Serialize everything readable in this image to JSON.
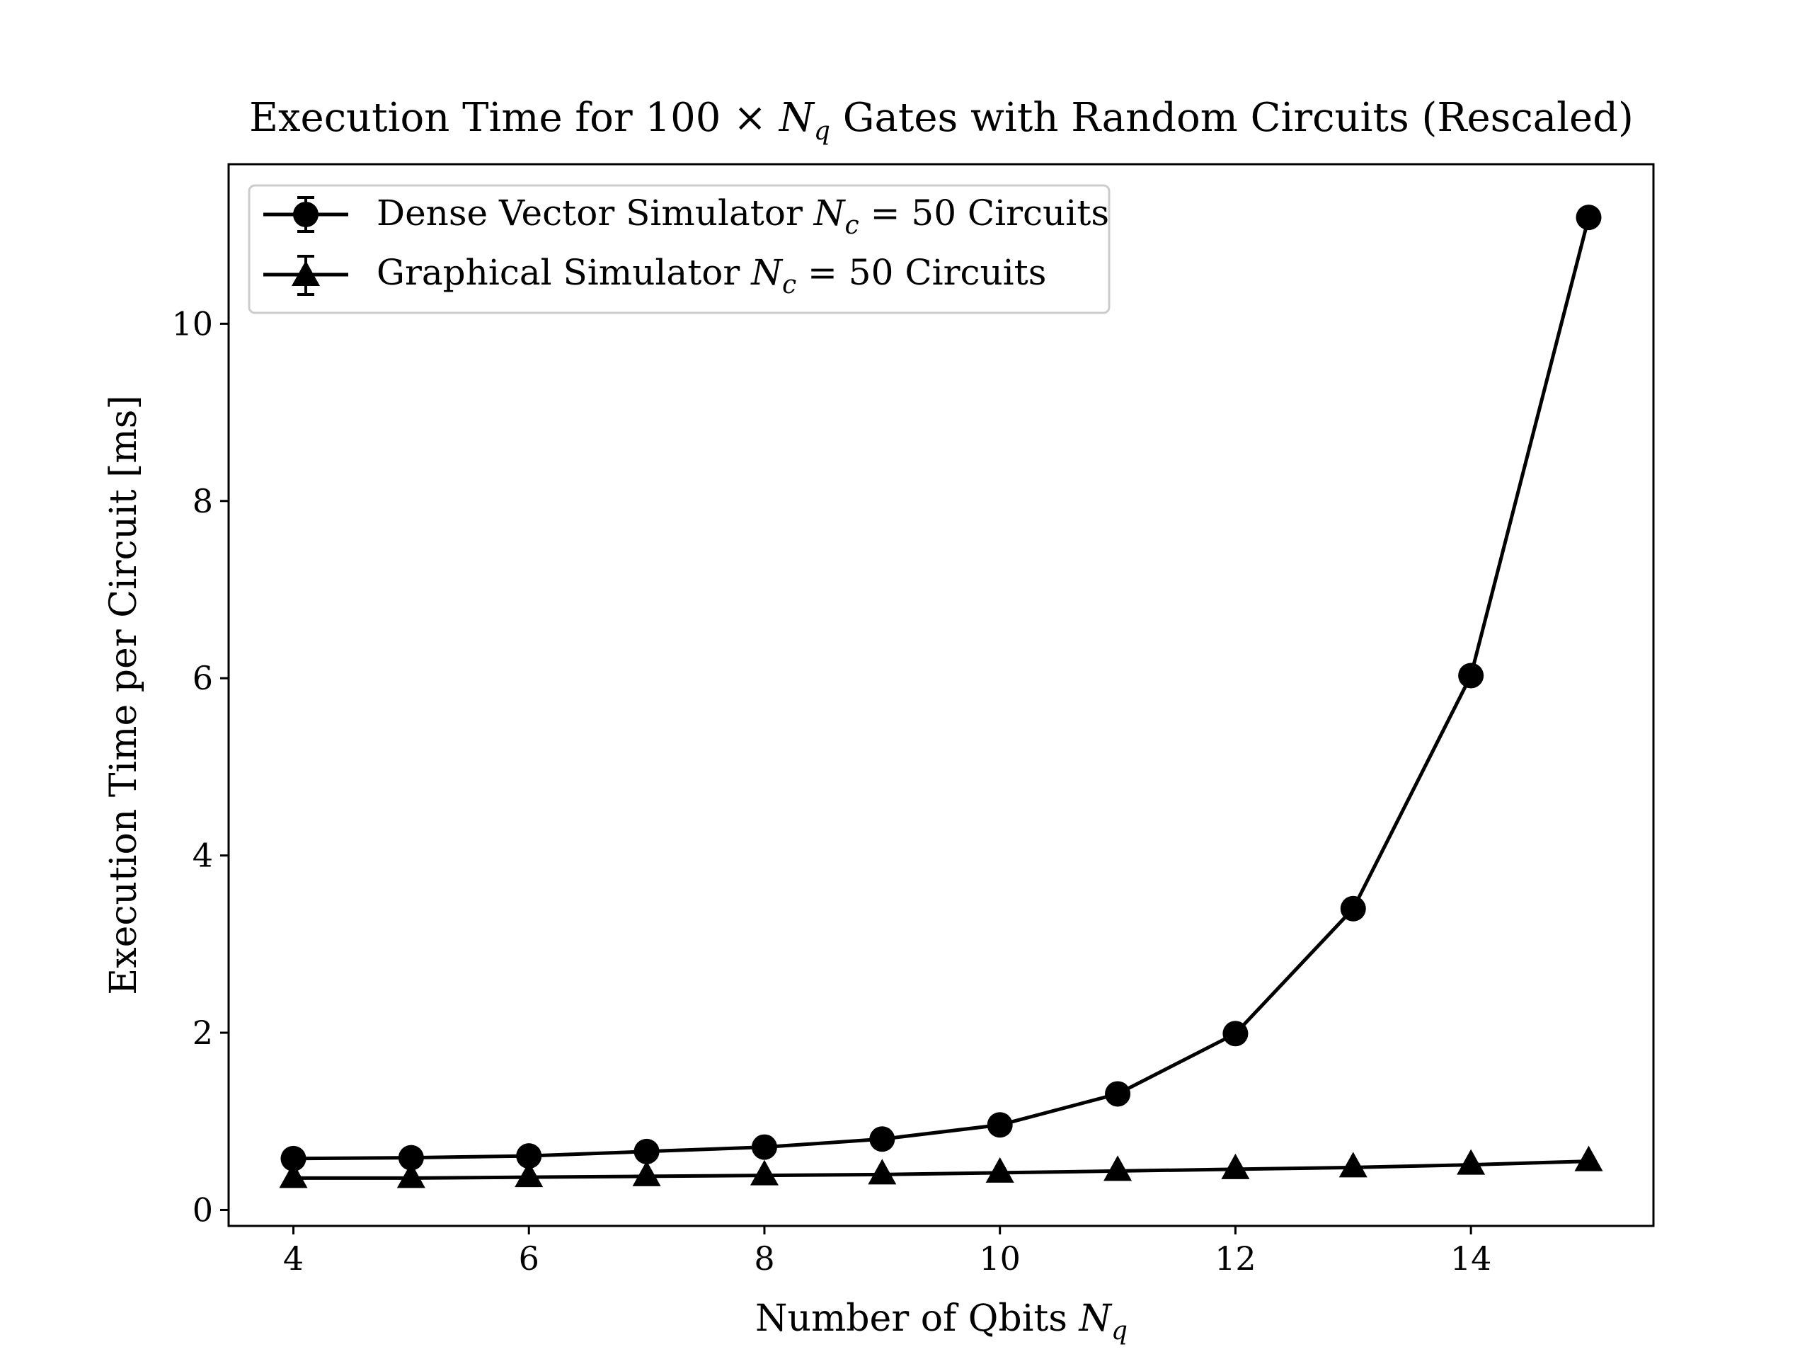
{
  "chart_data": {
    "type": "line",
    "title": {
      "prefix": "Execution Time for 100 × ",
      "var": "N",
      "var_sub": "q",
      "suffix": " Gates with Random Circuits (Rescaled)"
    },
    "xlabel": {
      "text": "Number of Qbits ",
      "var": "N",
      "var_sub": "q"
    },
    "ylabel": "Execution Time per Circuit [ms]",
    "xlim": [
      3.45,
      15.55
    ],
    "ylim": [
      -0.18,
      11.8
    ],
    "xticks": [
      4,
      6,
      8,
      10,
      12,
      14
    ],
    "yticks": [
      0,
      2,
      4,
      6,
      8,
      10
    ],
    "grid": false,
    "legend_position": "top-left",
    "colors": {
      "line": "#000000",
      "frame": "#000000",
      "legend_border": "#cccccc",
      "background": "#ffffff"
    },
    "x": [
      4,
      5,
      6,
      7,
      8,
      9,
      10,
      11,
      12,
      13,
      14,
      15
    ],
    "series": [
      {
        "name": {
          "prefix": "Dense Vector Simulator ",
          "var": "N",
          "var_sub": "c",
          "suffix": " = 50 Circuits"
        },
        "marker": "circle",
        "values": [
          0.58,
          0.59,
          0.61,
          0.66,
          0.71,
          0.8,
          0.96,
          1.31,
          1.99,
          3.4,
          6.03,
          11.2
        ]
      },
      {
        "name": {
          "prefix": "Graphical Simulator ",
          "var": "N",
          "var_sub": "c",
          "suffix": " = 50 Circuits"
        },
        "marker": "triangle",
        "values": [
          0.36,
          0.36,
          0.37,
          0.38,
          0.39,
          0.4,
          0.42,
          0.44,
          0.46,
          0.48,
          0.51,
          0.55
        ]
      }
    ]
  }
}
